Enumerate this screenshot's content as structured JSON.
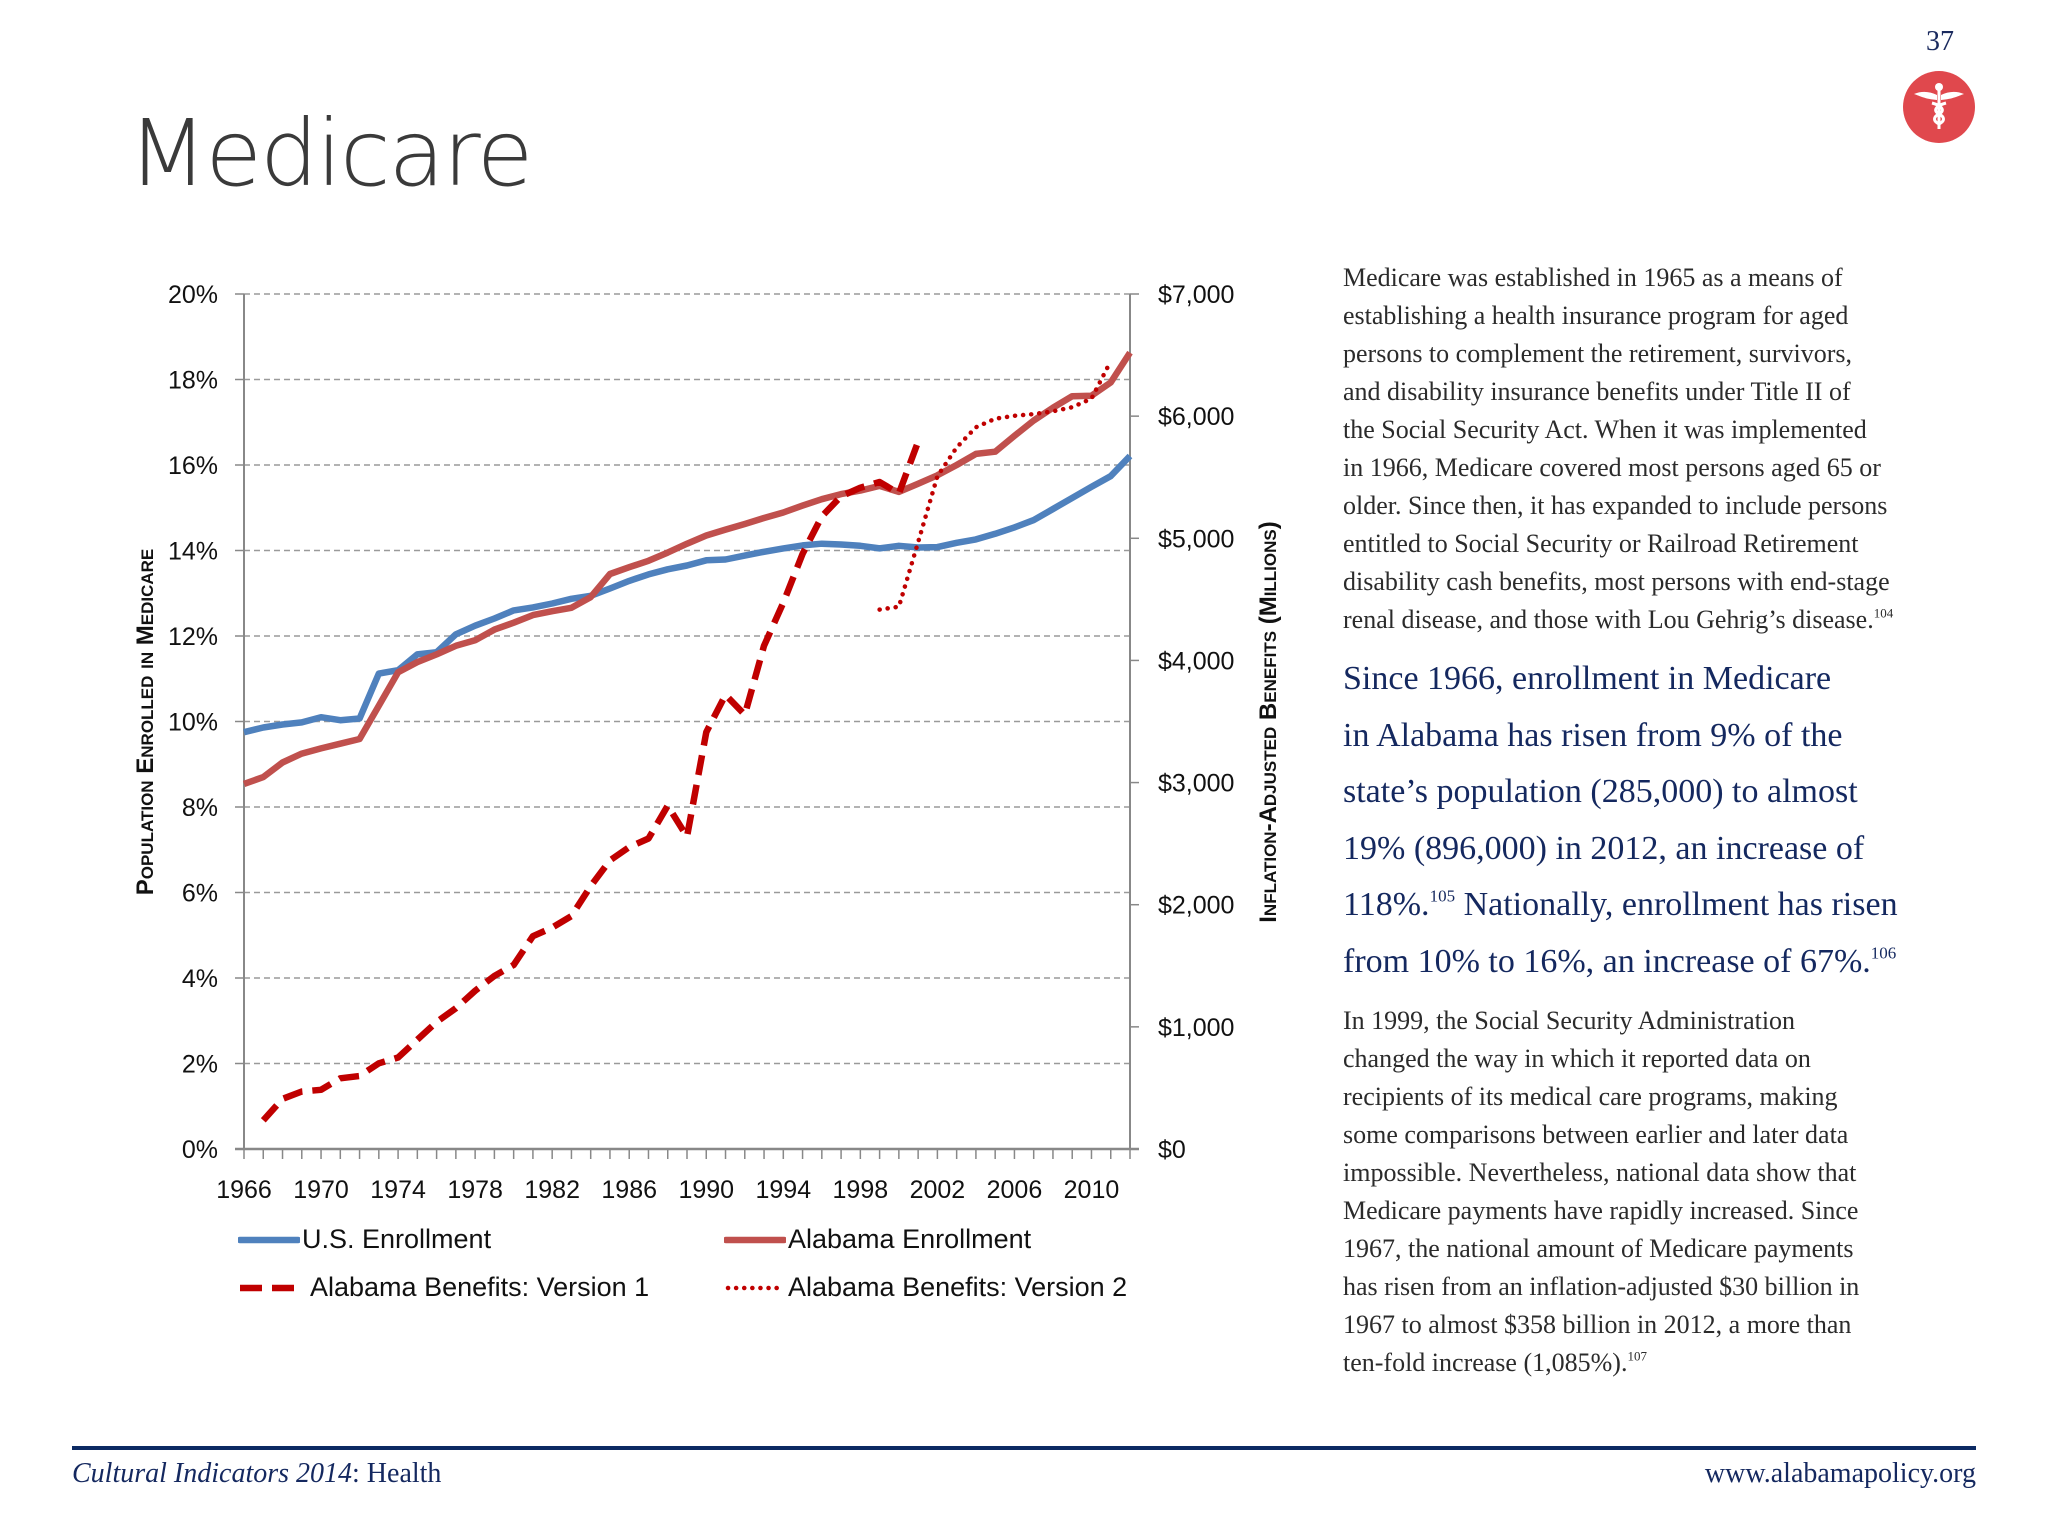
{
  "page_number": "37",
  "header_icon": "caduceus-icon",
  "title": "Medicare",
  "colors": {
    "us_enrollment": "#4f81bd",
    "alabama_enrollment": "#c0504d",
    "benefits": "#c00000",
    "icon_bg": "#e0484d",
    "footer_rule": "#0c2a63",
    "highlight_text": "#14285f"
  },
  "chart_data": {
    "type": "line",
    "x": [
      1966,
      1967,
      1968,
      1969,
      1970,
      1971,
      1972,
      1973,
      1974,
      1975,
      1976,
      1977,
      1978,
      1979,
      1980,
      1981,
      1982,
      1983,
      1984,
      1985,
      1986,
      1987,
      1988,
      1989,
      1990,
      1991,
      1992,
      1993,
      1994,
      1995,
      1996,
      1997,
      1998,
      1999,
      2000,
      2001,
      2002,
      2003,
      2004,
      2005,
      2006,
      2007,
      2008,
      2009,
      2010,
      2011,
      2012
    ],
    "xlim": [
      1966,
      2012
    ],
    "x_tick_labels": [
      "1966",
      "1970",
      "1974",
      "1978",
      "1982",
      "1986",
      "1990",
      "1994",
      "1998",
      "2002",
      "2006",
      "2010"
    ],
    "ylabel": "Population Enrolled in Medicare",
    "ylim": [
      0,
      20
    ],
    "y_tick_labels": [
      "0%",
      "2%",
      "4%",
      "6%",
      "8%",
      "10%",
      "12%",
      "14%",
      "16%",
      "18%",
      "20%"
    ],
    "y2label": "Inflation-Adjusted Benefits (Millions)",
    "y2lim": [
      0,
      7000
    ],
    "y2_tick_labels": [
      "$0",
      "$1,000",
      "$2,000",
      "$3,000",
      "$4,000",
      "$5,000",
      "$6,000",
      "$7,000"
    ],
    "grid": "horizontal dashed",
    "legend_placement": "bottom",
    "series": [
      {
        "name": "U.S. Enrollment",
        "axis": "left",
        "style": "solid",
        "color": "#4f81bd",
        "values": [
          9.75,
          9.86,
          9.93,
          9.98,
          10.1,
          10.03,
          10.07,
          11.12,
          11.2,
          11.57,
          11.62,
          12.04,
          12.24,
          12.41,
          12.6,
          12.67,
          12.76,
          12.87,
          12.94,
          13.11,
          13.29,
          13.44,
          13.56,
          13.65,
          13.77,
          13.79,
          13.88,
          13.97,
          14.05,
          14.12,
          14.16,
          14.14,
          14.11,
          14.05,
          14.11,
          14.07,
          14.08,
          14.18,
          14.26,
          14.39,
          14.54,
          14.71,
          14.97,
          15.23,
          15.49,
          15.74,
          16.21
        ]
      },
      {
        "name": "Alabama Enrollment",
        "axis": "left",
        "style": "solid",
        "color": "#c0504d",
        "values": [
          8.54,
          8.7,
          9.04,
          9.25,
          9.37,
          9.48,
          9.59,
          10.37,
          11.15,
          11.39,
          11.57,
          11.77,
          11.9,
          12.15,
          12.31,
          12.49,
          12.58,
          12.66,
          12.91,
          13.45,
          13.61,
          13.76,
          13.95,
          14.16,
          14.35,
          14.49,
          14.62,
          14.76,
          14.89,
          15.05,
          15.2,
          15.32,
          15.4,
          15.51,
          15.37,
          15.56,
          15.76,
          16.0,
          16.26,
          16.31,
          16.68,
          17.04,
          17.34,
          17.61,
          17.62,
          17.93,
          18.63
        ]
      },
      {
        "name": "Alabama Benefits: Version 1",
        "axis": "right",
        "style": "dashed",
        "color": "#c00000",
        "values": [
          null,
          235,
          410,
          471,
          485,
          579,
          598,
          702,
          749,
          895,
          1040,
          1153,
          1295,
          1417,
          1507,
          1742,
          1813,
          1907,
          2152,
          2363,
          2472,
          2542,
          2811,
          2557,
          3413,
          3719,
          3555,
          4120,
          4473,
          4873,
          5179,
          5344,
          5414,
          5461,
          5367,
          5791,
          null,
          null,
          null,
          null,
          null,
          null,
          null,
          null,
          null,
          null,
          null
        ]
      },
      {
        "name": "Alabama Benefits: Version 2",
        "axis": "right",
        "style": "dotted",
        "color": "#c00000",
        "values": [
          null,
          null,
          null,
          null,
          null,
          null,
          null,
          null,
          null,
          null,
          null,
          null,
          null,
          null,
          null,
          null,
          null,
          null,
          null,
          null,
          null,
          null,
          null,
          null,
          null,
          null,
          null,
          null,
          null,
          null,
          null,
          null,
          null,
          4416,
          4440,
          4967,
          5508,
          5744,
          5909,
          5979,
          6003,
          6017,
          6040,
          6073,
          6144,
          6450,
          null
        ]
      }
    ]
  },
  "text": {
    "intro_lines": [
      "Medicare was established in 1965 as a means of",
      "establishing a health insurance program for aged",
      "persons to complement the retirement, survivors,",
      "and disability insurance benefits under Title II of",
      "the Social Security Act.  When it was implemented",
      "in 1966, Medicare covered most persons aged 65 or",
      "older.  Since then, it has expanded to include persons",
      "entitled to Social Security or Railroad Retirement",
      "disability cash benefits, most persons with end-stage",
      "renal disease, and those with Lou Gehrig’s disease."
    ],
    "intro_note": "104",
    "highlight_lines": [
      "Since 1966, enrollment in Medicare",
      "in Alabama has risen from 9% of the",
      "state’s population (285,000) to almost",
      "19% (896,000) in 2012, an increase of"
    ],
    "highlight_line5_a": "118%.",
    "highlight_note_a": "105",
    "highlight_line5_b": " Nationally, enrollment has risen",
    "highlight_line6": "from 10% to 16%, an increase of 67%.",
    "highlight_note_b": "106",
    "closing_lines": [
      "In 1999, the Social Security Administration",
      "changed the way in which it reported data on",
      "recipients of its medical care programs, making",
      "some comparisons between earlier and later data",
      "impossible. Nevertheless, national data show that",
      "Medicare payments have rapidly increased.  Since",
      "1967, the national amount of Medicare payments",
      "has risen from an inflation-adjusted $30 billion in",
      "1967 to almost $358 billion in 2012, a more than",
      "ten-fold increase (1,085%)."
    ],
    "closing_note": "107"
  },
  "footer": {
    "publication_italic": "Cultural Indicators 2014",
    "publication_rest": ": Health",
    "website": "www.alabamapolicy.org"
  }
}
